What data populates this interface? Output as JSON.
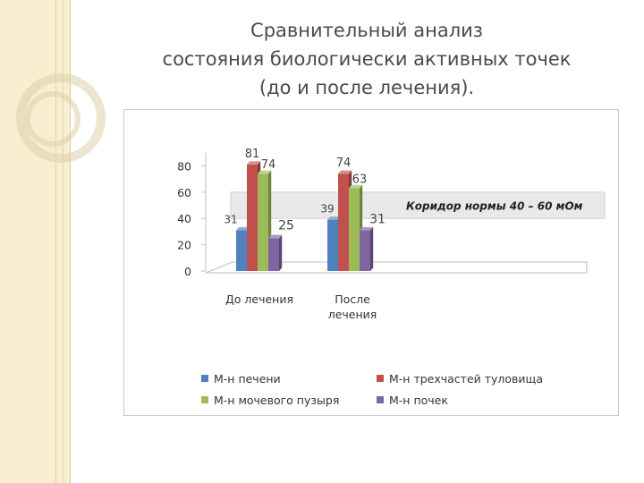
{
  "title": {
    "line1": "Сравнительный анализ",
    "line2": "состояния биологически активных точек",
    "line3": "(до и после лечения)."
  },
  "chart_data": {
    "type": "bar",
    "style": "3d-clustered-column",
    "categories": [
      "До лечения",
      "После лечения"
    ],
    "series": [
      {
        "name": "М-н печени",
        "values": [
          31,
          39
        ],
        "color": "#4f81bd"
      },
      {
        "name": "М-н трехчастей туловища",
        "values": [
          81,
          74
        ],
        "color": "#c0504d"
      },
      {
        "name": "М-н мочевого пузыря",
        "values": [
          74,
          63
        ],
        "color": "#9bbb59"
      },
      {
        "name": "М-н почек",
        "values": [
          25,
          31
        ],
        "color": "#8064a2"
      }
    ],
    "yticks": [
      0,
      20,
      40,
      60,
      80
    ],
    "ylim": [
      0,
      90
    ],
    "grid": false,
    "legend": "bottom",
    "annotation": {
      "text": "Коридор нормы 40 – 60 мОм",
      "range": [
        40,
        60
      ]
    }
  }
}
